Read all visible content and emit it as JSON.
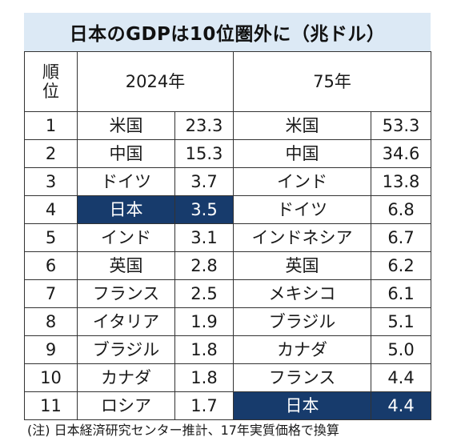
{
  "title": "日本のGDPは10位圏外に（兆ドル）",
  "header": {
    "rank_line1": "順",
    "rank_line2": "位",
    "year_a": "2024年",
    "year_b": "75年"
  },
  "colors": {
    "title_background": "#dce9f5",
    "highlight_background": "#173b6c",
    "highlight_text": "#ffffff",
    "border": "#333333"
  },
  "rows": [
    {
      "rank": "1",
      "country_2024": "米国",
      "value_2024": "23.3",
      "country_75": "米国",
      "value_75": "53.3"
    },
    {
      "rank": "2",
      "country_2024": "中国",
      "value_2024": "15.3",
      "country_75": "中国",
      "value_75": "34.6"
    },
    {
      "rank": "3",
      "country_2024": "ドイツ",
      "value_2024": "3.7",
      "country_75": "インド",
      "value_75": "13.8"
    },
    {
      "rank": "4",
      "country_2024": "日本",
      "value_2024": "3.5",
      "country_75": "ドイツ",
      "value_75": "6.8",
      "highlight_2024": true
    },
    {
      "rank": "5",
      "country_2024": "インド",
      "value_2024": "3.1",
      "country_75": "インドネシア",
      "value_75": "6.7"
    },
    {
      "rank": "6",
      "country_2024": "英国",
      "value_2024": "2.8",
      "country_75": "英国",
      "value_75": "6.2"
    },
    {
      "rank": "7",
      "country_2024": "フランス",
      "value_2024": "2.5",
      "country_75": "メキシコ",
      "value_75": "6.1"
    },
    {
      "rank": "8",
      "country_2024": "イタリア",
      "value_2024": "1.9",
      "country_75": "ブラジル",
      "value_75": "5.1"
    },
    {
      "rank": "9",
      "country_2024": "ブラジル",
      "value_2024": "1.8",
      "country_75": "カナダ",
      "value_75": "5.0"
    },
    {
      "rank": "10",
      "country_2024": "カナダ",
      "value_2024": "1.8",
      "country_75": "フランス",
      "value_75": "4.4"
    },
    {
      "rank": "11",
      "country_2024": "ロシア",
      "value_2024": "1.7",
      "country_75": "日本",
      "value_75": "4.4",
      "highlight_75": true
    }
  ],
  "note": "(注) 日本経済研究センター推計、17年実質価格で換算"
}
